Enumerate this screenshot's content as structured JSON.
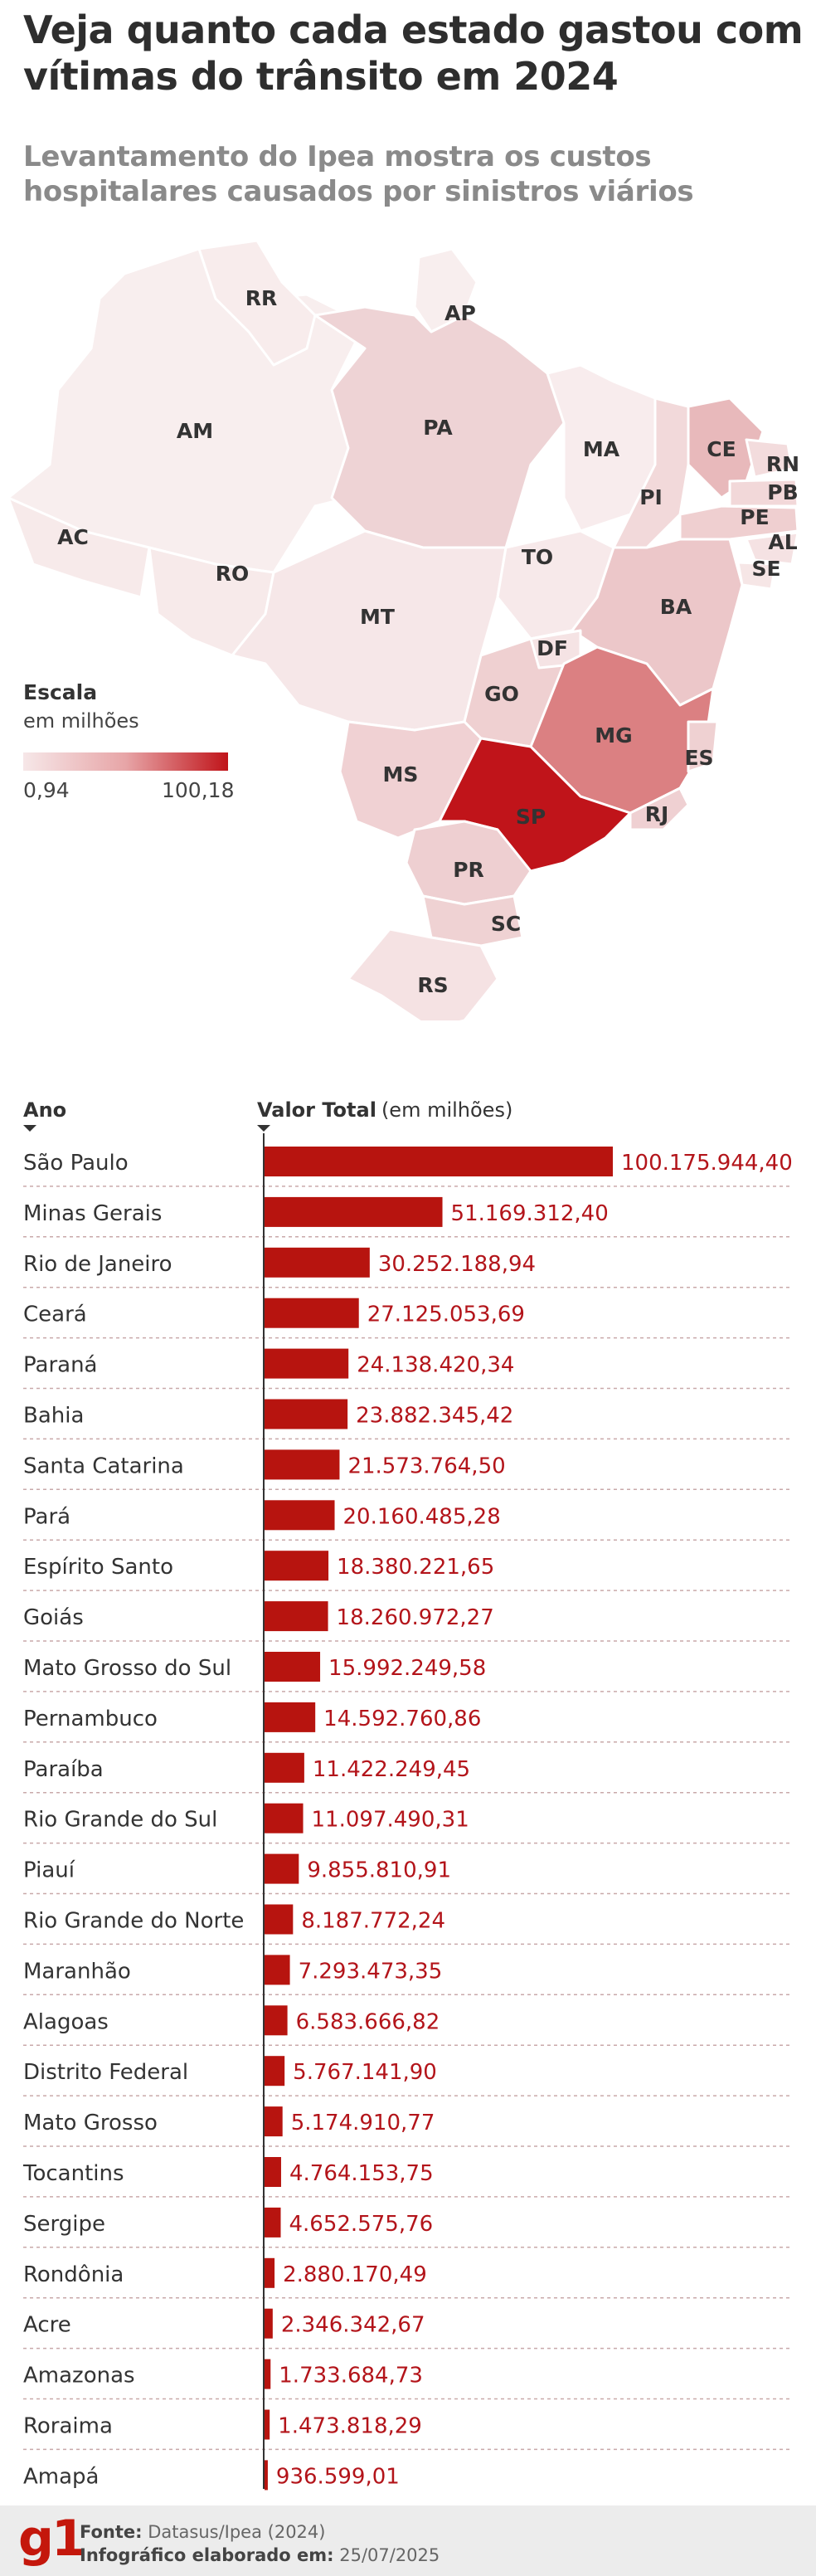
{
  "header": {
    "title": "Veja quanto cada estado gastou com vítimas do trânsito em 2024",
    "subtitle": "Levantamento do Ipea mostra os custos hospitalares causados por sinistros viários"
  },
  "map": {
    "scale_title": "Escala",
    "scale_unit": "em milhões",
    "scale_min": "0,94",
    "scale_max": "100,18",
    "color_low": "#f6e7e8",
    "color_high": "#c0141a",
    "states": [
      "RR",
      "AP",
      "AM",
      "PA",
      "MA",
      "CE",
      "RN",
      "PB",
      "PE",
      "AL",
      "SE",
      "PI",
      "AC",
      "RO",
      "TO",
      "BA",
      "MT",
      "DF",
      "GO",
      "MG",
      "ES",
      "MS",
      "SP",
      "RJ",
      "PR",
      "SC",
      "RS"
    ]
  },
  "chart_data": {
    "type": "bar",
    "orientation": "horizontal",
    "category_header": "Ano",
    "value_header": "Valor Total",
    "value_header_unit": "(em milhões)",
    "bar_color": "#b7140f",
    "categories": [
      "São Paulo",
      "Minas Gerais",
      "Rio de Janeiro",
      "Ceará",
      "Paraná",
      "Bahia",
      "Santa Catarina",
      "Pará",
      "Espírito Santo",
      "Goiás",
      "Mato Grosso do Sul",
      "Pernambuco",
      "Paraíba",
      "Rio Grande do Sul",
      "Piauí",
      "Rio Grande do Norte",
      "Maranhão",
      "Alagoas",
      "Distrito Federal",
      "Mato Grosso",
      "Tocantins",
      "Sergipe",
      "Rondônia",
      "Acre",
      "Amazonas",
      "Roraima",
      "Amapá"
    ],
    "values": [
      100175944.4,
      51169312.4,
      30252188.94,
      27125053.69,
      24138420.34,
      23882345.42,
      21573764.5,
      20160485.28,
      18380221.65,
      18260972.27,
      15992249.58,
      14592760.86,
      11422249.45,
      11097490.31,
      9855810.91,
      8187772.24,
      7293473.35,
      6583666.82,
      5767141.9,
      5174910.77,
      4764153.75,
      4652575.76,
      2880170.49,
      2346342.67,
      1733684.73,
      1473818.29,
      936599.01
    ],
    "value_labels": [
      "100.175.944,40",
      "51.169.312,40",
      "30.252.188,94",
      "27.125.053,69",
      "24.138.420,34",
      "23.882.345,42",
      "21.573.764,50",
      "20.160.485,28",
      "18.380.221,65",
      "18.260.972,27",
      "15.992.249,58",
      "14.592.760,86",
      "11.422.249,45",
      "11.097.490,31",
      "9.855.810,91",
      "8.187.772,24",
      "7.293.473,35",
      "6.583.666,82",
      "5.767.141,90",
      "5.174.910,77",
      "4.764.153,75",
      "4.652.575,76",
      "2.880.170,49",
      "2.346.342,67",
      "1.733.684,73",
      "1.473.818,29",
      "936.599,01"
    ]
  },
  "footer": {
    "logo": "g1",
    "source_label": "Fonte:",
    "source_value": "Datasus/Ipea (2024)",
    "date_label": "Infográfico elaborado em:",
    "date_value": "25/07/2025"
  }
}
